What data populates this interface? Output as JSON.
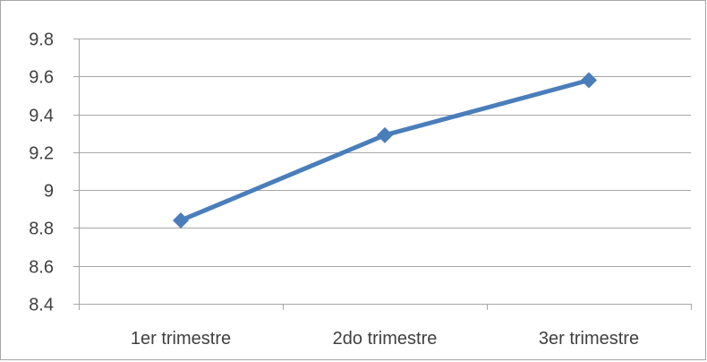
{
  "chart_data": {
    "type": "line",
    "title": "",
    "xlabel": "",
    "ylabel": "",
    "categories": [
      "1er trimestre",
      "2do trimestre",
      "3er trimestre"
    ],
    "series": [
      {
        "values": [
          8.84,
          9.29,
          9.58
        ],
        "color": "#4a7ebb",
        "marker": "diamond"
      }
    ],
    "ylim": [
      8.4,
      9.8
    ],
    "y_ticks": [
      "8.4",
      "8.6",
      "8.8",
      "9",
      "9.2",
      "9.4",
      "9.6",
      "9.8"
    ],
    "grid": true,
    "legend": "none"
  }
}
